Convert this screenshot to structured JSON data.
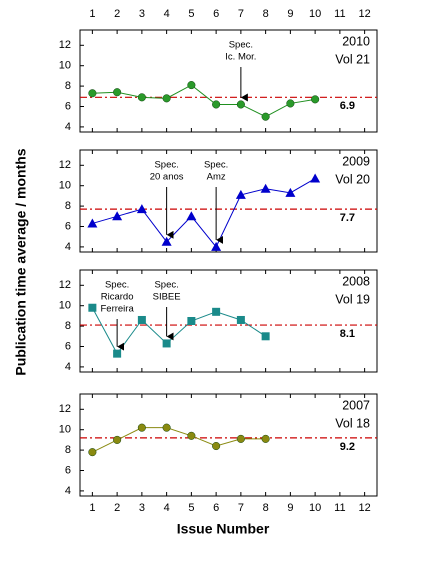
{
  "figure": {
    "xlabel": "Issue Number",
    "ylabel": "Publication time average / months"
  },
  "chart_data": [
    {
      "type": "line",
      "year": "2010",
      "volume": "Vol 21",
      "marker": "circle",
      "color": "#2a9a2a",
      "line_color": "#1f8f1f",
      "x": [
        1,
        2,
        3,
        4,
        5,
        6,
        7,
        8,
        9,
        10
      ],
      "values": [
        7.3,
        7.4,
        6.9,
        6.8,
        8.1,
        6.2,
        6.2,
        5.0,
        6.3,
        6.7
      ],
      "average": 6.9,
      "average_color": "#cc0000",
      "xlim": [
        0.5,
        12.5
      ],
      "xticks": [
        1,
        2,
        3,
        4,
        5,
        6,
        7,
        8,
        9,
        10,
        11,
        12
      ],
      "xtick_labels": "top",
      "ylim": [
        3.5,
        13.5
      ],
      "yticks": [
        4,
        6,
        8,
        10,
        12
      ],
      "annotations": [
        {
          "lines": [
            "Spec.",
            "Ic. Mor."
          ],
          "x": 7
        }
      ]
    },
    {
      "type": "line",
      "year": "2009",
      "volume": "Vol 20",
      "marker": "triangle",
      "color": "#0000cc",
      "line_color": "#0000cc",
      "x": [
        1,
        2,
        3,
        4,
        5,
        6,
        7,
        8,
        9,
        10
      ],
      "values": [
        6.3,
        7.0,
        7.7,
        4.5,
        7.0,
        4.0,
        9.1,
        9.7,
        9.3,
        10.7
      ],
      "average": 7.7,
      "average_color": "#cc0000",
      "xlim": [
        0.5,
        12.5
      ],
      "xticks": [
        1,
        2,
        3,
        4,
        5,
        6,
        7,
        8,
        9,
        10,
        11,
        12
      ],
      "xtick_labels": "none",
      "ylim": [
        3.5,
        13.5
      ],
      "yticks": [
        4,
        6,
        8,
        10,
        12
      ],
      "annotations": [
        {
          "lines": [
            "Spec.",
            "20 anos"
          ],
          "x": 4
        },
        {
          "lines": [
            "Spec.",
            "Amz"
          ],
          "x": 6
        }
      ]
    },
    {
      "type": "line",
      "year": "2008",
      "volume": "Vol 19",
      "marker": "square",
      "color": "#1a8a8a",
      "line_color": "#1a8a8a",
      "x": [
        1,
        2,
        3,
        4,
        5,
        6,
        7,
        8
      ],
      "values": [
        9.8,
        5.3,
        8.6,
        6.3,
        8.5,
        9.4,
        8.6,
        7.0
      ],
      "average": 8.1,
      "average_color": "#cc0000",
      "xlim": [
        0.5,
        12.5
      ],
      "xticks": [
        1,
        2,
        3,
        4,
        5,
        6,
        7,
        8,
        9,
        10,
        11,
        12
      ],
      "xtick_labels": "none",
      "ylim": [
        3.5,
        13.5
      ],
      "yticks": [
        4,
        6,
        8,
        10,
        12
      ],
      "annotations": [
        {
          "lines": [
            "Spec.",
            "Ricardo",
            "Ferreira"
          ],
          "x": 2
        },
        {
          "lines": [
            "Spec.",
            "SIBEE"
          ],
          "x": 4
        }
      ]
    },
    {
      "type": "line",
      "year": "2007",
      "volume": "Vol 18",
      "marker": "circle",
      "color": "#8a8a10",
      "line_color": "#8a8a10",
      "x": [
        1,
        2,
        3,
        4,
        5,
        6,
        7,
        8
      ],
      "values": [
        7.8,
        9.0,
        10.2,
        10.2,
        9.4,
        8.4,
        9.1,
        9.1
      ],
      "average": 9.2,
      "average_color": "#cc0000",
      "xlim": [
        0.5,
        12.5
      ],
      "xticks": [
        1,
        2,
        3,
        4,
        5,
        6,
        7,
        8,
        9,
        10,
        11,
        12
      ],
      "xtick_labels": "bottom",
      "ylim": [
        3.5,
        13.5
      ],
      "yticks": [
        4,
        6,
        8,
        10,
        12
      ],
      "annotations": []
    }
  ]
}
